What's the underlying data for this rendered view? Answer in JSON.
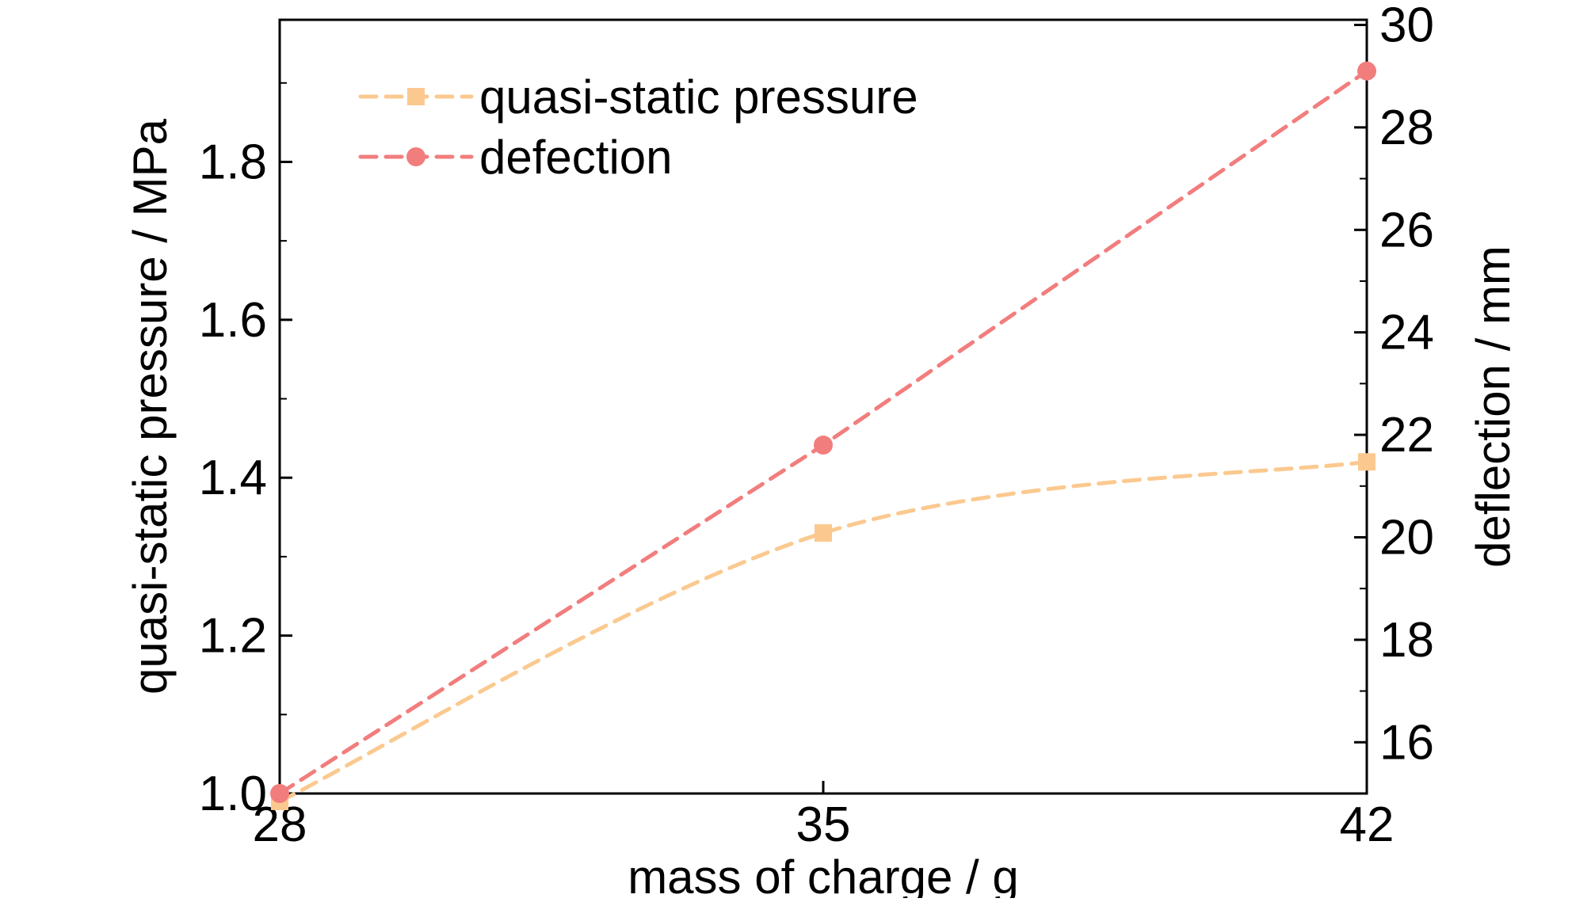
{
  "chart_data": {
    "type": "line",
    "title": "",
    "xlabel": "mass of charge / g",
    "ylabel_left": "quasi-static pressure / MPa",
    "ylabel_right": "deflection / mm",
    "x": [
      28,
      35,
      42
    ],
    "x_ticks": [
      "28",
      "35",
      "42"
    ],
    "xlim": [
      28,
      42
    ],
    "ylim_left": [
      1.0,
      1.98
    ],
    "ylim_right": [
      15.0,
      30.1
    ],
    "y_ticks_left": [
      "1.0",
      "1.2",
      "1.4",
      "1.6",
      "1.8"
    ],
    "y_ticks_right": [
      "16",
      "18",
      "20",
      "22",
      "24",
      "26",
      "28",
      "30"
    ],
    "grid": false,
    "legend_position": "top-left",
    "series": [
      {
        "name": "quasi-static pressure",
        "axis": "left",
        "values": [
          0.99,
          1.33,
          1.42
        ],
        "color": "#fbc98f",
        "marker": "square",
        "line_style": "dashed"
      },
      {
        "name": "defection",
        "axis": "right",
        "values": [
          15.0,
          21.8,
          29.1
        ],
        "color": "#f27d7d",
        "marker": "circle",
        "line_style": "dashed"
      }
    ]
  }
}
